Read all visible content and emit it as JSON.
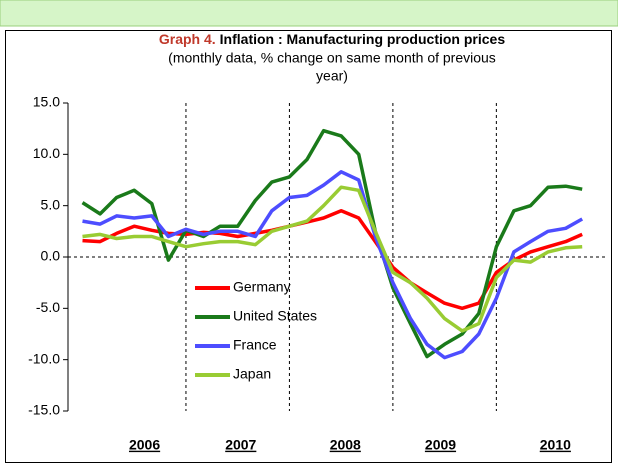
{
  "chart_data": {
    "type": "line",
    "title_label": "Graph 4.",
    "title": "Inflation : Manufacturing production prices",
    "subtitle": [
      "(monthly data, % change on  same month of previous",
      "year)"
    ],
    "x": [
      2006,
      2006.17,
      2006.33,
      2006.5,
      2006.67,
      2006.83,
      2007,
      2007.17,
      2007.33,
      2007.5,
      2007.67,
      2007.83,
      2008,
      2008.17,
      2008.33,
      2008.5,
      2008.67,
      2008.83,
      2009,
      2009.17,
      2009.33,
      2009.5,
      2009.67,
      2009.83,
      2010,
      2010.17,
      2010.33,
      2010.5,
      2010.67,
      2010.83
    ],
    "series": [
      {
        "name": "Germany",
        "color": "#ff0000",
        "values": [
          1.6,
          1.5,
          2.3,
          3.0,
          2.6,
          2.3,
          2.2,
          2.4,
          2.3,
          2.0,
          2.3,
          2.6,
          3.0,
          3.4,
          3.8,
          4.5,
          3.8,
          1.5,
          -1.0,
          -2.5,
          -3.5,
          -4.5,
          -5.0,
          -4.5,
          -1.5,
          -0.3,
          0.5,
          1.0,
          1.5,
          2.2
        ]
      },
      {
        "name": "United States",
        "color": "#1a7a1a",
        "values": [
          5.3,
          4.2,
          5.8,
          6.5,
          5.2,
          -0.3,
          2.6,
          2.0,
          3.0,
          3.0,
          5.5,
          7.3,
          7.8,
          9.5,
          12.3,
          11.8,
          10.0,
          2.5,
          -3.0,
          -6.5,
          -9.7,
          -8.5,
          -7.5,
          -5.5,
          1.0,
          4.5,
          5.0,
          6.8,
          6.9,
          6.6
        ]
      },
      {
        "name": "France",
        "color": "#4d4dff",
        "values": [
          3.5,
          3.2,
          4.0,
          3.8,
          4.0,
          2.0,
          2.7,
          2.2,
          2.5,
          2.5,
          2.0,
          4.5,
          5.8,
          6.0,
          7.0,
          8.3,
          7.5,
          2.0,
          -2.5,
          -6.0,
          -8.5,
          -9.8,
          -9.2,
          -7.5,
          -4.0,
          0.5,
          1.5,
          2.5,
          2.8,
          3.7
        ]
      },
      {
        "name": "Japan",
        "color": "#99cc33",
        "values": [
          2.0,
          2.2,
          1.8,
          2.0,
          2.0,
          1.5,
          1.0,
          1.3,
          1.5,
          1.5,
          1.2,
          2.5,
          3.0,
          3.5,
          5.0,
          6.8,
          6.5,
          2.5,
          -1.5,
          -2.5,
          -4.0,
          -6.0,
          -7.2,
          -6.5,
          -2.0,
          -0.3,
          -0.5,
          0.5,
          0.9,
          1.0
        ]
      }
    ],
    "xlim": [
      2005.86,
      2011.05
    ],
    "xticks": [
      {
        "value": 2006.6,
        "label": "2006"
      },
      {
        "value": 2007.53,
        "label": "2007"
      },
      {
        "value": 2008.54,
        "label": "2008"
      },
      {
        "value": 2009.46,
        "label": "2009"
      },
      {
        "value": 2010.57,
        "label": "2010"
      }
    ],
    "xgrid": [
      2007,
      2008,
      2009,
      2010
    ],
    "ylim": [
      -15,
      15
    ],
    "yticks": [
      {
        "value": -15,
        "label": "-15.0"
      },
      {
        "value": -10,
        "label": "-10.0"
      },
      {
        "value": -5,
        "label": "-5.0"
      },
      {
        "value": 0,
        "label": "0.0"
      },
      {
        "value": 5,
        "label": "5.0"
      },
      {
        "value": 10,
        "label": "10.0"
      },
      {
        "value": 15,
        "label": "15.0"
      }
    ]
  }
}
